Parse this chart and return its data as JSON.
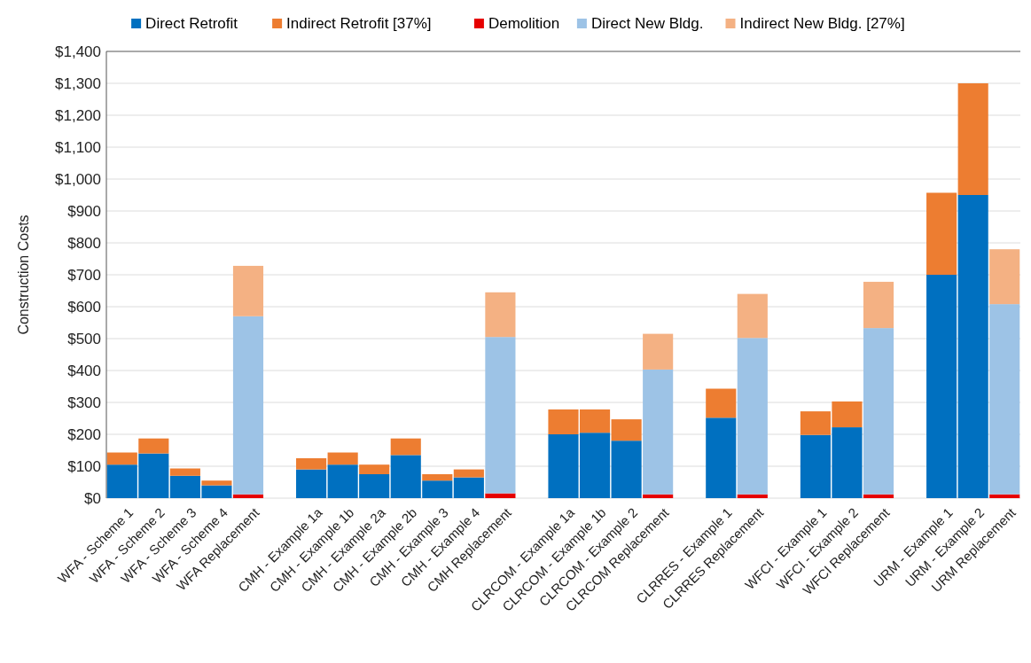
{
  "chart_data": {
    "type": "bar",
    "stacked": true,
    "ylabel": "Construction Costs",
    "legend": "top",
    "grid": "y",
    "categories": [
      "WFA - Scheme 1",
      "WFA - Scheme 2",
      "WFA - Scheme 3",
      "WFA - Scheme 4",
      "WFA Replacement",
      null,
      "CMH - Example 1a",
      "CMH - Example 1b",
      "CMH - Example 2a",
      "CMH - Example 2b",
      "CMH - Example 3",
      "CMH - Example 4",
      "CMH Replacement",
      null,
      "CLRCOM - Example 1a",
      "CLRCOM - Example 1b",
      "CLRCOM - Example 2",
      "CLRCOM Replacement",
      null,
      "CLRRES - Example 1",
      "CLRRES Replacement",
      null,
      "WFCI - Example 1",
      "WFCI - Example 2",
      "WFCI Replacement",
      null,
      "URM - Example 1",
      "URM - Example 2",
      "URM Replacement"
    ],
    "ylim": [
      0,
      1400
    ],
    "yticks": [
      {
        "value": 0,
        "label": "$0"
      },
      {
        "value": 100,
        "label": "$100"
      },
      {
        "value": 200,
        "label": "$200"
      },
      {
        "value": 300,
        "label": "$300"
      },
      {
        "value": 400,
        "label": "$400"
      },
      {
        "value": 500,
        "label": "$500"
      },
      {
        "value": 600,
        "label": "$600"
      },
      {
        "value": 700,
        "label": "$700"
      },
      {
        "value": 800,
        "label": "$800"
      },
      {
        "value": 900,
        "label": "$900"
      },
      {
        "value": 1000,
        "label": "$1,000"
      },
      {
        "value": 1100,
        "label": "$1,100"
      },
      {
        "value": 1200,
        "label": "$1,200"
      },
      {
        "value": 1300,
        "label": "$1,300"
      },
      {
        "value": 1400,
        "label": "$1,400"
      }
    ],
    "series": [
      {
        "name": "Direct Retrofit",
        "color": "#0070c0",
        "values": [
          105,
          140,
          70,
          40,
          null,
          null,
          90,
          105,
          75,
          135,
          55,
          65,
          null,
          null,
          200,
          205,
          180,
          null,
          null,
          252,
          null,
          null,
          198,
          222,
          null,
          null,
          700,
          950,
          null
        ]
      },
      {
        "name": "Indirect Retrofit [37%]",
        "color": "#ed7d31",
        "values": [
          38,
          47,
          23,
          15,
          null,
          null,
          35,
          38,
          30,
          52,
          20,
          25,
          null,
          null,
          78,
          73,
          67,
          null,
          null,
          91,
          null,
          null,
          74,
          81,
          null,
          null,
          257,
          350,
          null
        ]
      },
      {
        "name": "Demolition",
        "color": "#e60000",
        "values": [
          null,
          null,
          null,
          null,
          12,
          null,
          null,
          null,
          null,
          null,
          null,
          null,
          15,
          null,
          null,
          null,
          null,
          12,
          null,
          null,
          12,
          null,
          null,
          null,
          12,
          null,
          null,
          null,
          12
        ]
      },
      {
        "name": "Direct New Bldg.",
        "color": "#9dc3e6",
        "values": [
          null,
          null,
          null,
          null,
          558,
          null,
          null,
          null,
          null,
          null,
          null,
          null,
          490,
          null,
          null,
          null,
          null,
          391,
          null,
          null,
          490,
          null,
          null,
          null,
          521,
          null,
          null,
          null,
          596
        ]
      },
      {
        "name": "Indirect New Bldg. [27%]",
        "color": "#f4b183",
        "values": [
          null,
          null,
          null,
          null,
          158,
          null,
          null,
          null,
          null,
          null,
          null,
          null,
          140,
          null,
          null,
          null,
          null,
          112,
          null,
          null,
          138,
          null,
          null,
          null,
          145,
          null,
          null,
          null,
          172
        ]
      }
    ]
  }
}
